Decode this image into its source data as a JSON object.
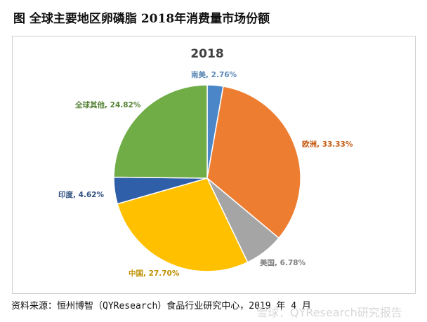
{
  "figure_title": "图  全球主要地区卵磷脂 2018年消费量市场份额",
  "source": "资料来源：恒州博智（QYResearch）食品行业研究中心，2019 年 4 月",
  "watermark": "雪球：QYResearch研究报告",
  "chart_data": {
    "type": "pie",
    "title": "2018",
    "start": "12 o'clock, clockwise",
    "slices": [
      {
        "label": "南美",
        "value": 2.76,
        "text": "2.76%",
        "color": "#4a86c8",
        "label_color": "#5b87b5"
      },
      {
        "label": "欧洲",
        "value": 33.33,
        "text": "33.33%",
        "color": "#ed7d31",
        "label_color": "#c55a11"
      },
      {
        "label": "美国",
        "value": 6.78,
        "text": "6.78%",
        "color": "#a5a5a5",
        "label_color": "#7f7f7f"
      },
      {
        "label": "中国",
        "value": 27.7,
        "text": "27.70%",
        "color": "#ffc000",
        "label_color": "#bf9000"
      },
      {
        "label": "印度",
        "value": 4.62,
        "text": "4.62%",
        "color": "#2e5fa8",
        "label_color": "#2f4f7f"
      },
      {
        "label": "全球其他",
        "value": 24.82,
        "text": "24.82%",
        "color": "#70ad47",
        "label_color": "#548235"
      }
    ]
  }
}
